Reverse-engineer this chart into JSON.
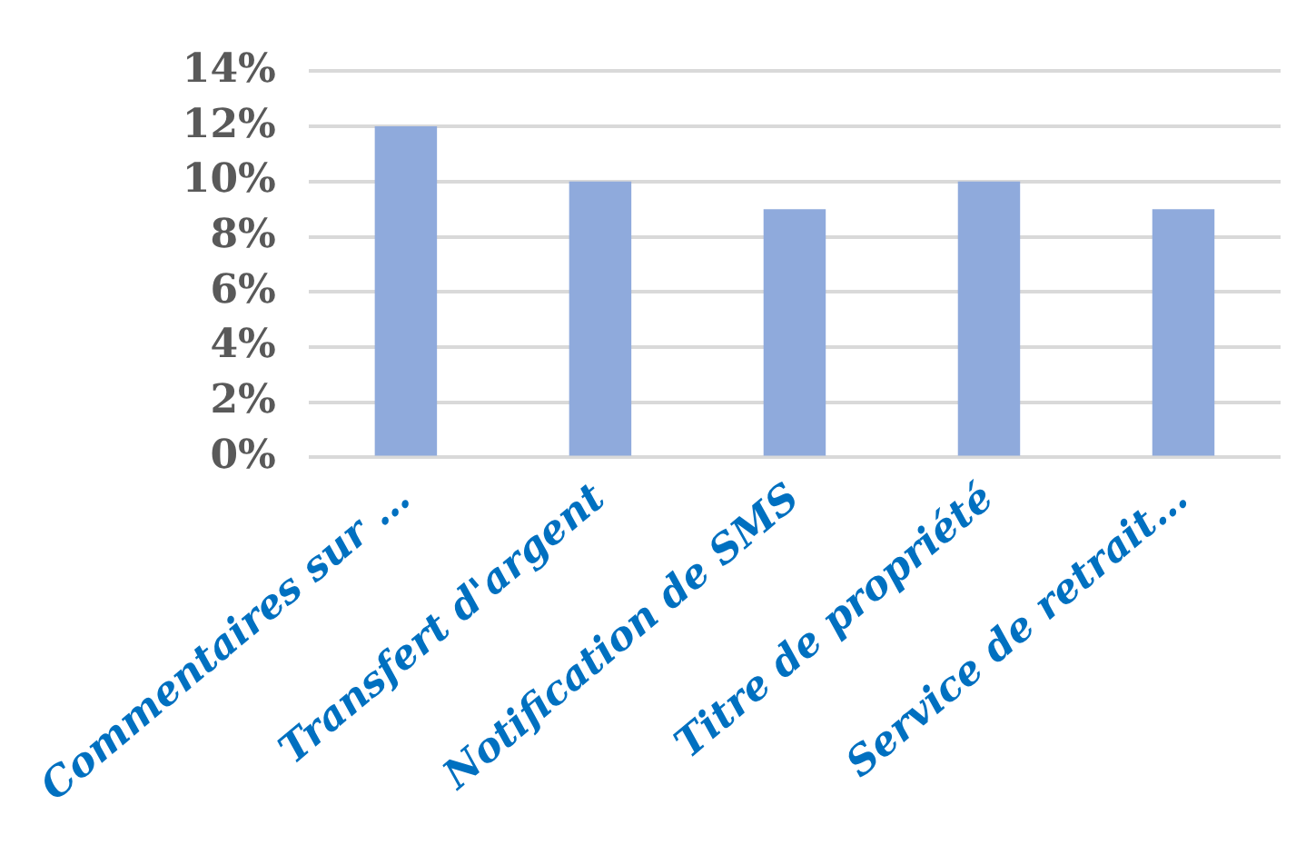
{
  "chart_data": {
    "type": "bar",
    "categories": [
      "Commentaires sur …",
      "Transfert d'argent",
      "Notification de SMS",
      "Titre de propriété",
      "Service de retrait…"
    ],
    "values": [
      12,
      10,
      9,
      10,
      9
    ],
    "color": "#8faadc",
    "ylim": [
      0,
      14
    ],
    "yticks": [
      {
        "value": 0,
        "label": "0%"
      },
      {
        "value": 2,
        "label": "2%"
      },
      {
        "value": 4,
        "label": "4%"
      },
      {
        "value": 6,
        "label": "6%"
      },
      {
        "value": 8,
        "label": "8%"
      },
      {
        "value": 10,
        "label": "10%"
      },
      {
        "value": 12,
        "label": "12%"
      },
      {
        "value": 14,
        "label": "14%"
      }
    ],
    "grid": "y",
    "legend": false
  }
}
